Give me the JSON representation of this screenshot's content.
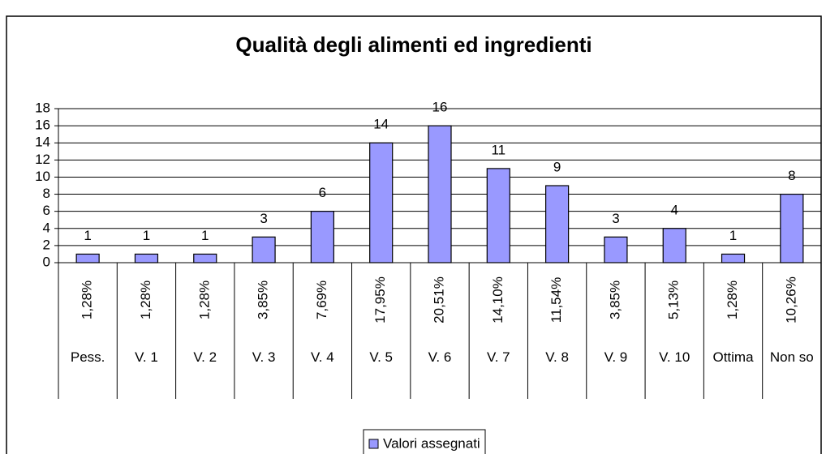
{
  "chart_data": {
    "type": "bar",
    "title": "Qualità degli alimenti ed ingredienti",
    "categories": [
      "Pess.",
      "V. 1",
      "V. 2",
      "V. 3",
      "V. 4",
      "V. 5",
      "V. 6",
      "V. 7",
      "V. 8",
      "V. 9",
      "V. 10",
      "Ottima",
      "Non so"
    ],
    "percent_labels": [
      "1,28%",
      "1,28%",
      "1,28%",
      "3,85%",
      "7,69%",
      "17,95%",
      "20,51%",
      "14,10%",
      "11,54%",
      "3,85%",
      "5,13%",
      "1,28%",
      "10,26%"
    ],
    "series": [
      {
        "name": "Valori assegnati",
        "color": "#9999ff",
        "values": [
          1,
          1,
          1,
          3,
          6,
          14,
          16,
          11,
          9,
          3,
          4,
          1,
          8
        ]
      }
    ],
    "ylim": [
      0,
      18
    ],
    "yticks": [
      0,
      2,
      4,
      6,
      8,
      10,
      12,
      14,
      16,
      18
    ],
    "grid": true,
    "legend": "bottom"
  }
}
